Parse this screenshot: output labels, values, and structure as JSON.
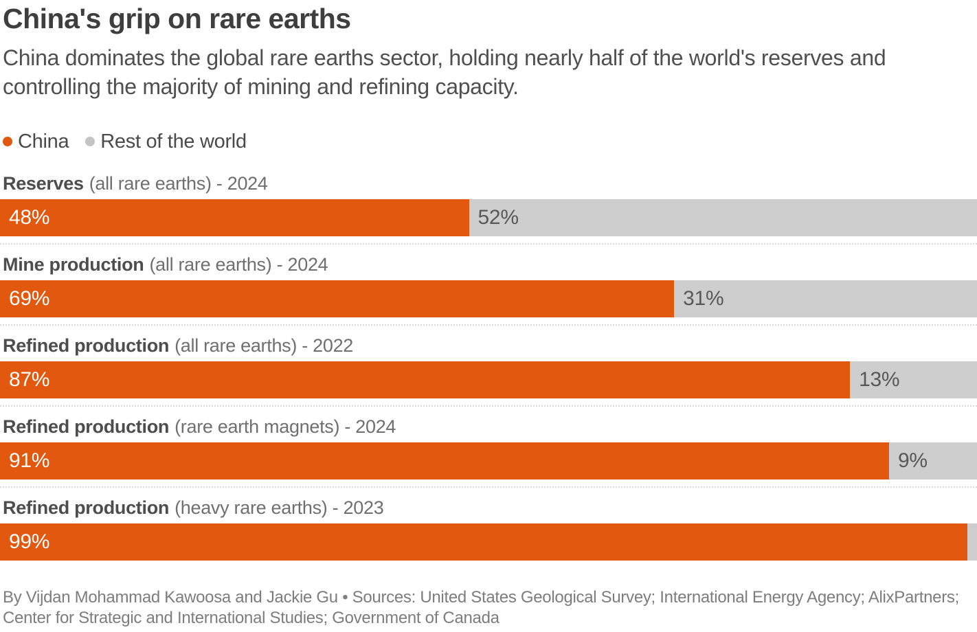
{
  "title": "China's grip on rare earths",
  "subtitle": "China dominates the global rare earths sector, holding nearly half of the world's reserves and controlling the majority of mining and refining capacity.",
  "legend": [
    {
      "label": "China",
      "color": "#e2580e"
    },
    {
      "label": "Rest of the world",
      "color": "#c4c4c4"
    }
  ],
  "colors": {
    "china": "#e2580e",
    "rest": "#cecece"
  },
  "chart_data": {
    "type": "bar",
    "orientation": "horizontal-stacked",
    "unit": "%",
    "series": [
      {
        "name": "China",
        "values": [
          48,
          69,
          87,
          91,
          99
        ]
      },
      {
        "name": "Rest of the world",
        "values": [
          52,
          31,
          13,
          9,
          1
        ]
      }
    ],
    "rows": [
      {
        "metric": "Reserves",
        "qualifier": "(all rare earths) - 2024",
        "china": 48,
        "rest": 52,
        "china_label": "48%",
        "rest_label": "52%"
      },
      {
        "metric": "Mine production",
        "qualifier": "(all rare earths) - 2024",
        "china": 69,
        "rest": 31,
        "china_label": "69%",
        "rest_label": "31%"
      },
      {
        "metric": "Refined production",
        "qualifier": "(all rare earths) - 2022",
        "china": 87,
        "rest": 13,
        "china_label": "87%",
        "rest_label": "13%"
      },
      {
        "metric": "Refined production",
        "qualifier": "(rare earth magnets) - 2024",
        "china": 91,
        "rest": 9,
        "china_label": "91%",
        "rest_label": "9%"
      },
      {
        "metric": "Refined production",
        "qualifier": "(heavy rare earths) - 2023",
        "china": 99,
        "rest": 1,
        "china_label": "99%",
        "rest_label": ""
      }
    ]
  },
  "footer": {
    "line1": "By Vijdan Mohammad Kawoosa and Jackie Gu • Sources: United States Geological Survey; International Energy Agency; AlixPartners;",
    "line2": "Center for Strategic and International Studies; Government of Canada"
  }
}
